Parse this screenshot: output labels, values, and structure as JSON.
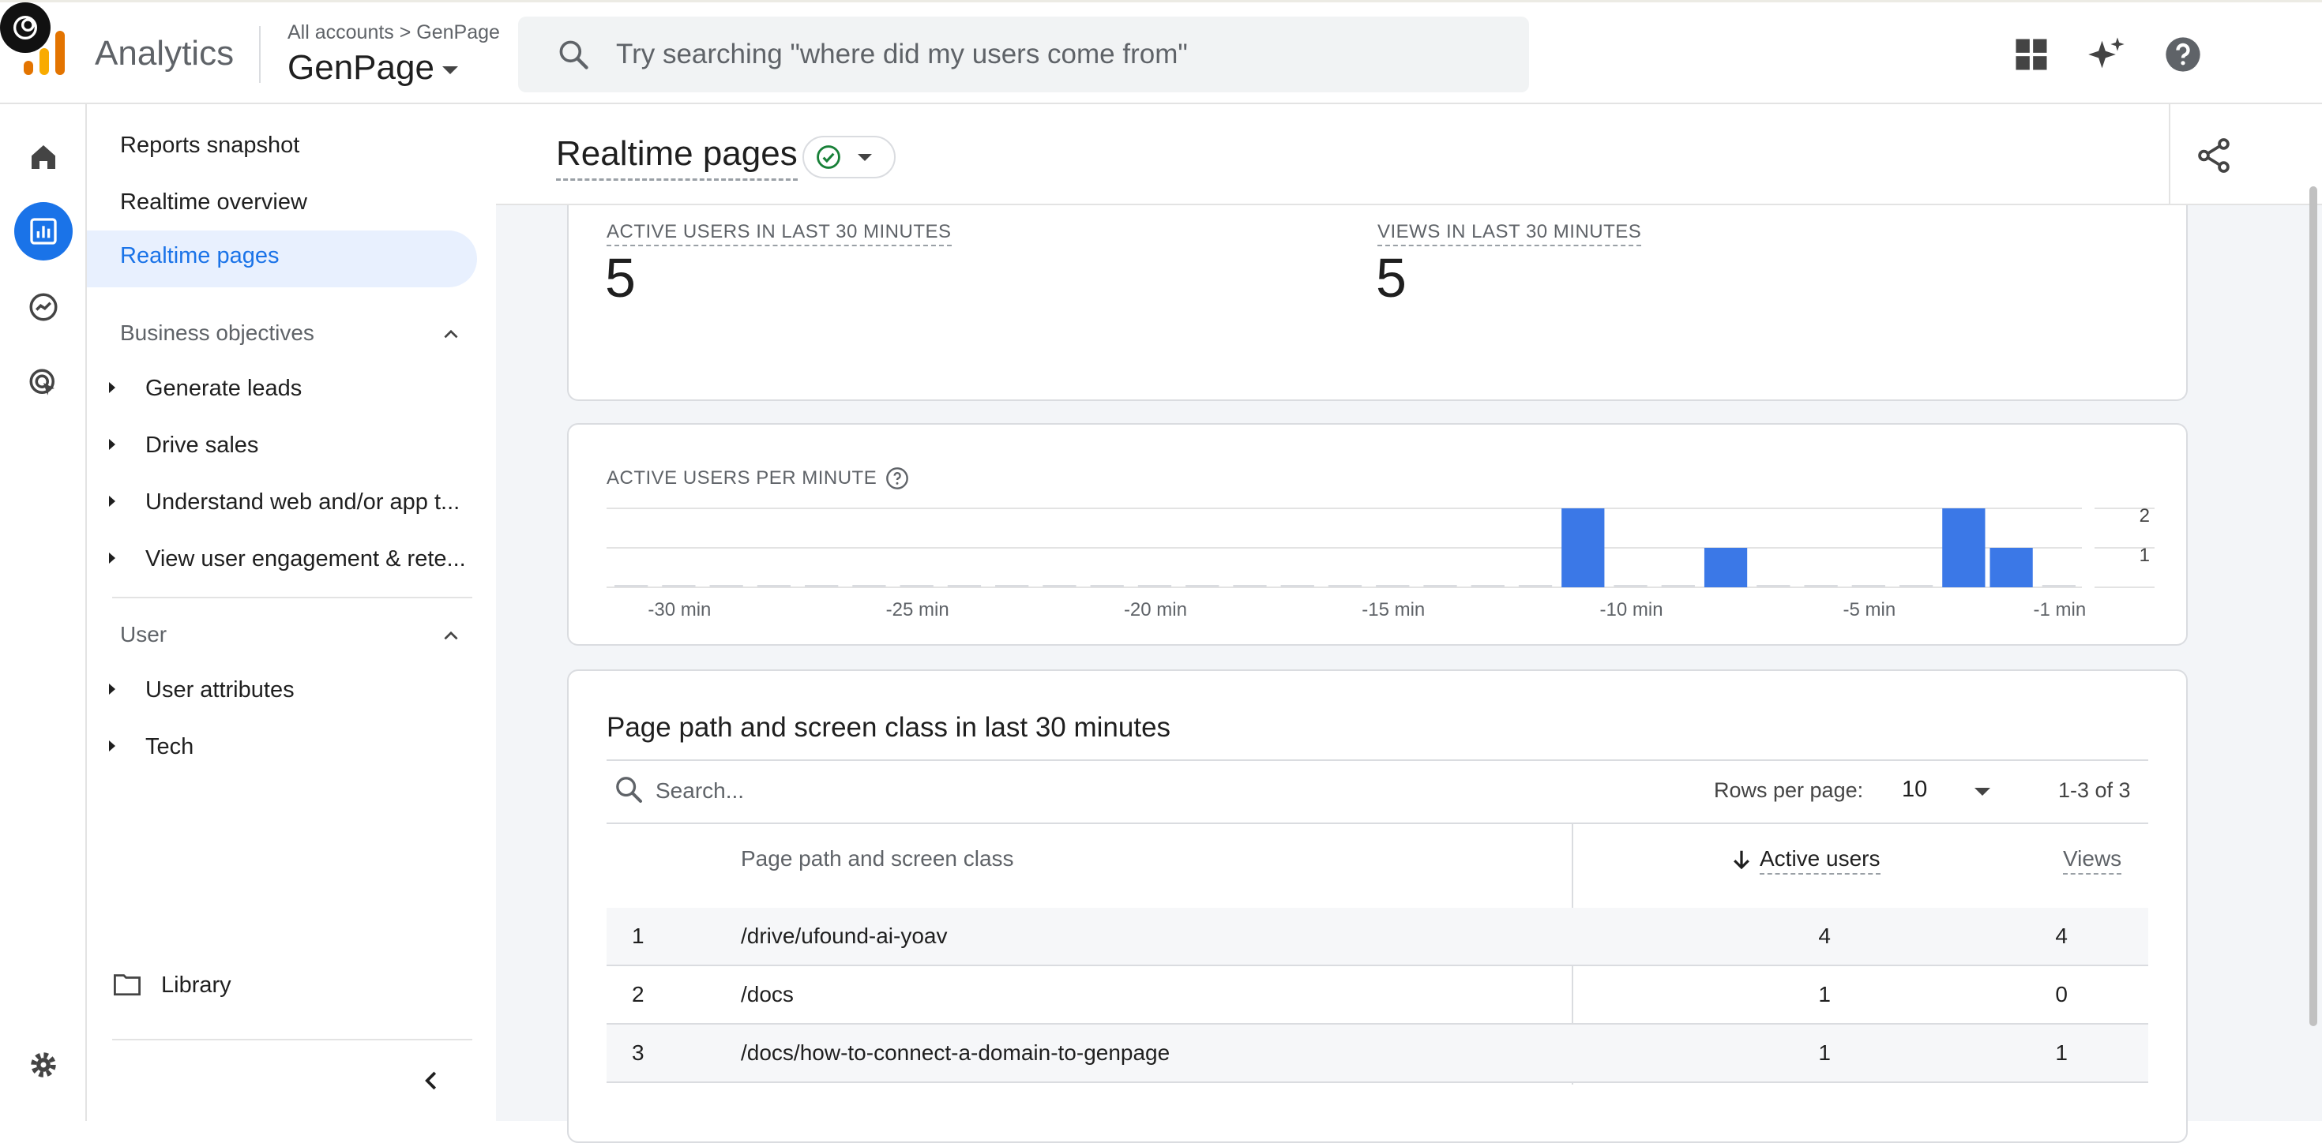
{
  "app": {
    "name": "Analytics",
    "account_path": "All accounts > GenPage",
    "property": "GenPage",
    "search_placeholder": "Try searching \"where did my users come from\""
  },
  "nav": {
    "reports_snapshot": "Reports snapshot",
    "realtime_overview": "Realtime overview",
    "realtime_pages": "Realtime pages",
    "section_business": "Business objectives",
    "business_items": [
      "Generate leads",
      "Drive sales",
      "Understand web and/or app t...",
      "View user engagement & rete..."
    ],
    "section_user": "User",
    "user_items": [
      "User attributes",
      "Tech"
    ],
    "library": "Library"
  },
  "header": {
    "title": "Realtime pages"
  },
  "metrics": {
    "active_users_label": "ACTIVE USERS IN LAST 30 MINUTES",
    "active_users_value": "5",
    "views_label": "VIEWS IN LAST 30 MINUTES",
    "views_value": "5"
  },
  "chart_data": {
    "type": "bar",
    "title": "ACTIVE USERS PER MINUTE",
    "xlabel": "",
    "ylabel": "",
    "x_tick_labels": [
      "-30 min",
      "-25 min",
      "-20 min",
      "-15 min",
      "-10 min",
      "-5 min",
      "-1 min"
    ],
    "y_tick_labels": [
      "2",
      "1"
    ],
    "ylim": [
      0,
      2
    ],
    "categories": [
      -31,
      -30,
      -29,
      -28,
      -27,
      -26,
      -25,
      -24,
      -23,
      -22,
      -21,
      -20,
      -19,
      -18,
      -17,
      -16,
      -15,
      -14,
      -13,
      -12,
      -11,
      -10,
      -9,
      -8,
      -7,
      -6,
      -5,
      -4,
      -3,
      -2,
      -1
    ],
    "values": [
      0,
      0,
      0,
      0,
      0,
      0,
      0,
      0,
      0,
      0,
      0,
      0,
      0,
      0,
      0,
      0,
      0,
      0,
      0,
      0,
      2,
      0,
      0,
      1,
      0,
      0,
      0,
      0,
      2,
      1,
      0
    ],
    "colors": {
      "bar": "#3b78e7",
      "baseline": "#dadce0"
    }
  },
  "table": {
    "title": "Page path and screen class in last 30 minutes",
    "search_placeholder": "Search...",
    "rows_per_page_label": "Rows per page:",
    "rows_per_page_value": "10",
    "range": "1-3 of 3",
    "headers": {
      "page": "Page path and screen class",
      "active_users": "Active users",
      "views": "Views"
    },
    "rows": [
      {
        "index": "1",
        "page": "/drive/ufound-ai-yoav",
        "active_users": "4",
        "views": "4"
      },
      {
        "index": "2",
        "page": "/docs",
        "active_users": "1",
        "views": "0"
      },
      {
        "index": "3",
        "page": "/docs/how-to-connect-a-domain-to-genpage",
        "active_users": "1",
        "views": "1"
      }
    ]
  },
  "colors": {
    "accent": "#1a73e8",
    "bar": "#3b78e7",
    "status_ok": "#188038"
  }
}
